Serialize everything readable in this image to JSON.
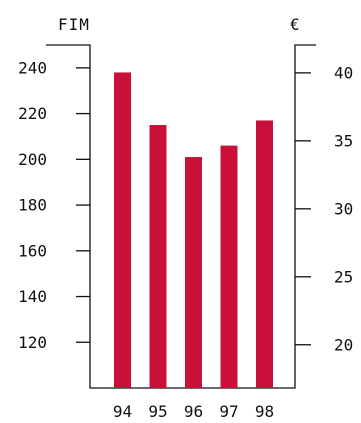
{
  "chart_data": {
    "type": "bar",
    "left_unit": "FIM",
    "right_unit": "€",
    "categories": [
      "94",
      "95",
      "96",
      "97",
      "98"
    ],
    "values": [
      238,
      215,
      201,
      206,
      217
    ],
    "y_left": {
      "range": [
        100,
        250
      ],
      "ticks": [
        "120",
        "140",
        "160",
        "180",
        "200",
        "220",
        "240"
      ]
    },
    "y_right": {
      "range": [
        16.82,
        42.05
      ],
      "ticks": [
        "20",
        "25",
        "30",
        "35",
        "40"
      ]
    },
    "grid": false,
    "legend": "none",
    "bar_color": "#c8103a"
  }
}
